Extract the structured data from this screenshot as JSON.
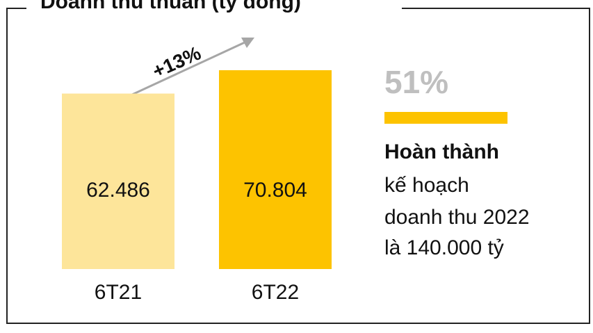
{
  "chart_data": {
    "type": "bar",
    "title": "Doanh thu thuần (tỷ đồng)",
    "categories": [
      "6T21",
      "6T22"
    ],
    "values": [
      62486,
      70804
    ],
    "value_labels": [
      "62.486",
      "70.804"
    ],
    "colors": [
      "#fde59a",
      "#fdc300"
    ],
    "annotations": {
      "growth": "+13%",
      "share": "51%",
      "note_title": "Hoàn thành",
      "note_lines": [
        "kế hoạch",
        "doanh thu 2022",
        "là 140.000 tỷ"
      ]
    }
  }
}
